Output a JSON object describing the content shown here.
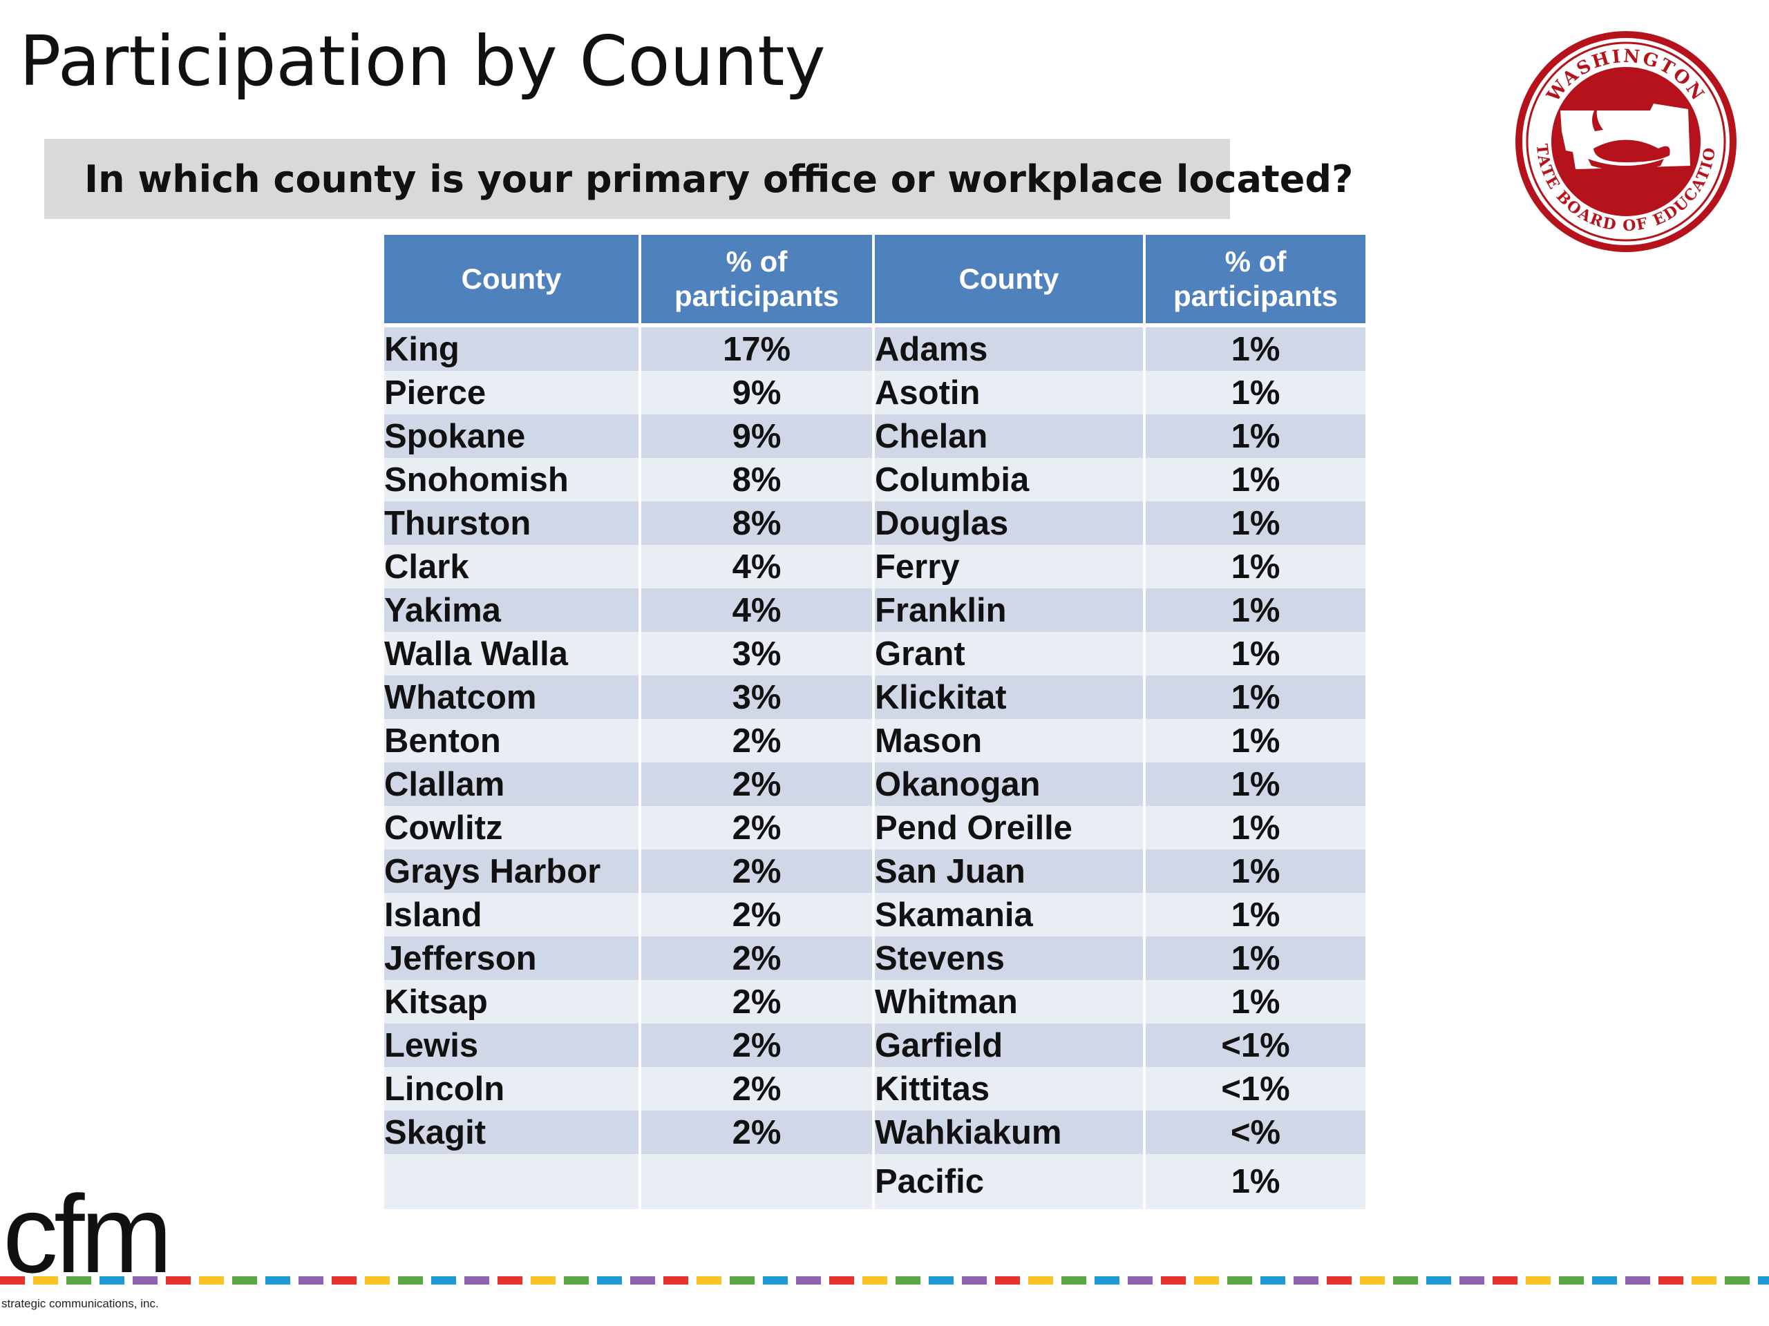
{
  "slide": {
    "title": "Participation by County",
    "question": "In which county is your primary office or workplace located?"
  },
  "seal": {
    "text": "WASHINGTON STATE BOARD OF EDUCATION",
    "color": "#b5121b"
  },
  "table": {
    "headers": [
      "County",
      "% of participants",
      "County",
      "% of participants"
    ],
    "rows": [
      {
        "c1": "King",
        "p1": "17%",
        "c2": "Adams",
        "p2": "1%"
      },
      {
        "c1": "Pierce",
        "p1": "9%",
        "c2": "Asotin",
        "p2": "1%"
      },
      {
        "c1": "Spokane",
        "p1": "9%",
        "c2": "Chelan",
        "p2": "1%"
      },
      {
        "c1": "Snohomish",
        "p1": "8%",
        "c2": "Columbia",
        "p2": "1%"
      },
      {
        "c1": "Thurston",
        "p1": "8%",
        "c2": "Douglas",
        "p2": "1%"
      },
      {
        "c1": "Clark",
        "p1": "4%",
        "c2": "Ferry",
        "p2": "1%"
      },
      {
        "c1": "Yakima",
        "p1": "4%",
        "c2": "Franklin",
        "p2": "1%"
      },
      {
        "c1": "Walla Walla",
        "p1": "3%",
        "c2": "Grant",
        "p2": "1%"
      },
      {
        "c1": "Whatcom",
        "p1": "3%",
        "c2": "Klickitat",
        "p2": "1%"
      },
      {
        "c1": "Benton",
        "p1": "2%",
        "c2": "Mason",
        "p2": "1%"
      },
      {
        "c1": "Clallam",
        "p1": "2%",
        "c2": "Okanogan",
        "p2": "1%"
      },
      {
        "c1": "Cowlitz",
        "p1": "2%",
        "c2": "Pend Oreille",
        "p2": "1%"
      },
      {
        "c1": "Grays Harbor",
        "p1": "2%",
        "c2": "San Juan",
        "p2": "1%"
      },
      {
        "c1": "Island",
        "p1": "2%",
        "c2": "Skamania",
        "p2": "1%"
      },
      {
        "c1": "Jefferson",
        "p1": "2%",
        "c2": "Stevens",
        "p2": "1%"
      },
      {
        "c1": "Kitsap",
        "p1": "2%",
        "c2": "Whitman",
        "p2": "1%"
      },
      {
        "c1": "Lewis",
        "p1": "2%",
        "c2": "Garfield",
        "p2": "<1%"
      },
      {
        "c1": "Lincoln",
        "p1": "2%",
        "c2": "Kittitas",
        "p2": "<1%"
      },
      {
        "c1": "Skagit",
        "p1": "2%",
        "c2": "Wahkiakum",
        "p2": "<%"
      },
      {
        "c1": "",
        "p1": "",
        "c2": "Pacific",
        "p2": "1%"
      }
    ]
  },
  "footer": {
    "logo_text": "cfm",
    "tagline": "strategic communications, inc.",
    "dash_colors": [
      "#e8312f",
      "#f7c325",
      "#5aa844",
      "#1e9ad6",
      "#8e63b0"
    ]
  }
}
